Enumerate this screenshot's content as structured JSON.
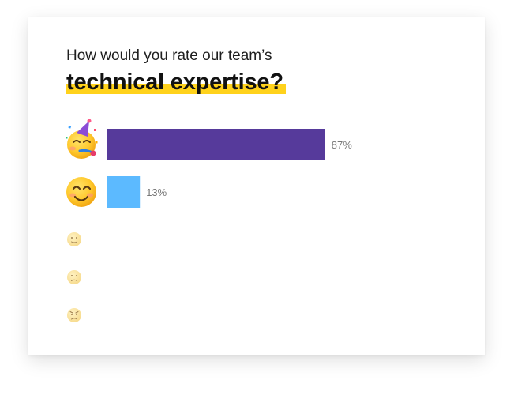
{
  "question": {
    "line1": "How would you rate our team’s",
    "line2": "technical expertise?"
  },
  "colors": {
    "highlight": "#ffd21c",
    "bar_top": "#563a9b",
    "bar_second": "#5cbaff",
    "label": "#777777"
  },
  "chart_data": {
    "type": "bar",
    "orientation": "horizontal",
    "categories": [
      "party-face-emoji",
      "smiling-face-emoji",
      "neutral-face-emoji",
      "frowning-face-emoji",
      "angry-face-emoji"
    ],
    "values": [
      87,
      13,
      0,
      0,
      0
    ],
    "value_labels": [
      "87%",
      "13%",
      "",
      "",
      ""
    ],
    "bar_colors": [
      "#563a9b",
      "#5cbaff",
      "",
      "",
      ""
    ],
    "xlim": [
      0,
      100
    ],
    "grid": false,
    "legend": "none"
  }
}
